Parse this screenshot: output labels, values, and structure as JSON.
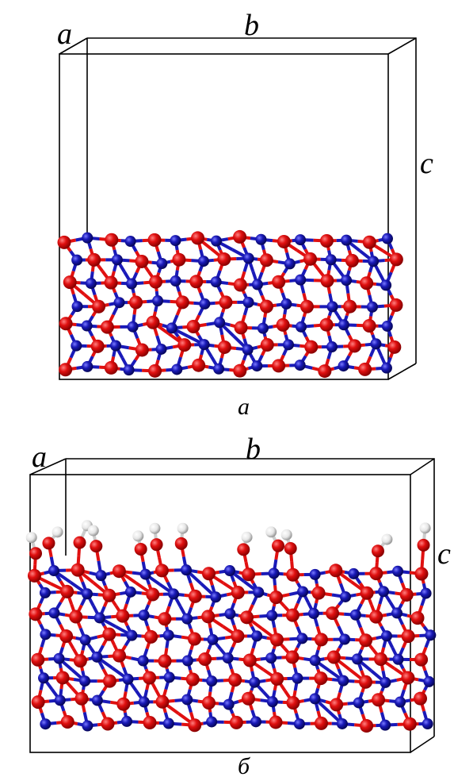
{
  "panels": [
    {
      "axis_labels": [
        "a",
        "b",
        "c"
      ],
      "caption": "a"
    },
    {
      "axis_labels": [
        "a",
        "b",
        "c"
      ],
      "caption": "б"
    }
  ]
}
